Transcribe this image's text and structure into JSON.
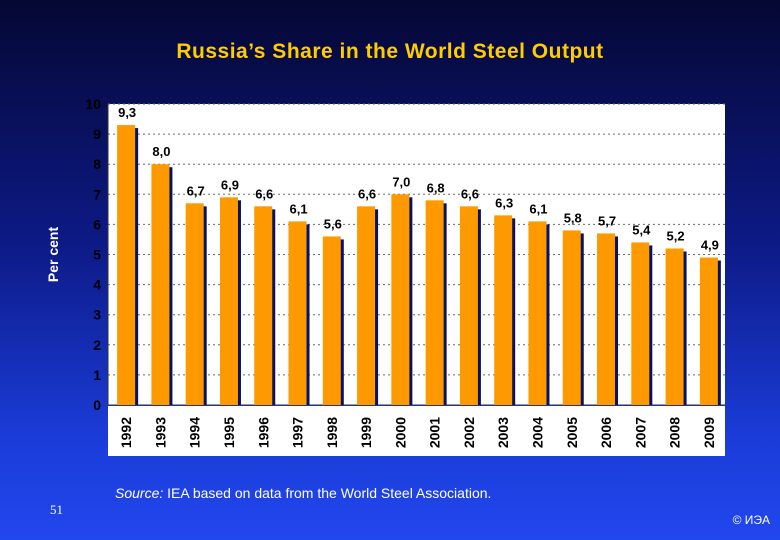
{
  "slide": {
    "page_number": "51",
    "copyright": "© ИЭА",
    "source_label": "Source:",
    "source_text": " IEA based on data from the World Steel Association."
  },
  "colors": {
    "bar": "#ff9900",
    "bar_shadow": "#061266",
    "title": "#ffcc00",
    "plot_bg": "#ffffff",
    "grid": "#6a6a6a",
    "text": "#000000"
  },
  "chart_data": {
    "type": "bar",
    "title": "Russia’s Share in the World Steel Output",
    "xlabel": "",
    "ylabel": "Per cent",
    "ylim": [
      0,
      10
    ],
    "yticks": [
      0,
      1,
      2,
      3,
      4,
      5,
      6,
      7,
      8,
      9,
      10
    ],
    "grid": true,
    "categories": [
      "1992",
      "1993",
      "1994",
      "1995",
      "1996",
      "1997",
      "1998",
      "1999",
      "2000",
      "2001",
      "2002",
      "2003",
      "2004",
      "2005",
      "2006",
      "2007",
      "2008",
      "2009"
    ],
    "values": [
      9.3,
      8.0,
      6.7,
      6.9,
      6.6,
      6.1,
      5.6,
      6.6,
      7.0,
      6.8,
      6.6,
      6.3,
      6.1,
      5.8,
      5.7,
      5.4,
      5.2,
      4.9
    ],
    "labels": [
      "9,3",
      "8,0",
      "6,7",
      "6,9",
      "6,6",
      "6,1",
      "5,6",
      "6,6",
      "7,0",
      "6,8",
      "6,6",
      "6,3",
      "6,1",
      "5,8",
      "5,7",
      "5,4",
      "5,2",
      "4,9"
    ]
  }
}
